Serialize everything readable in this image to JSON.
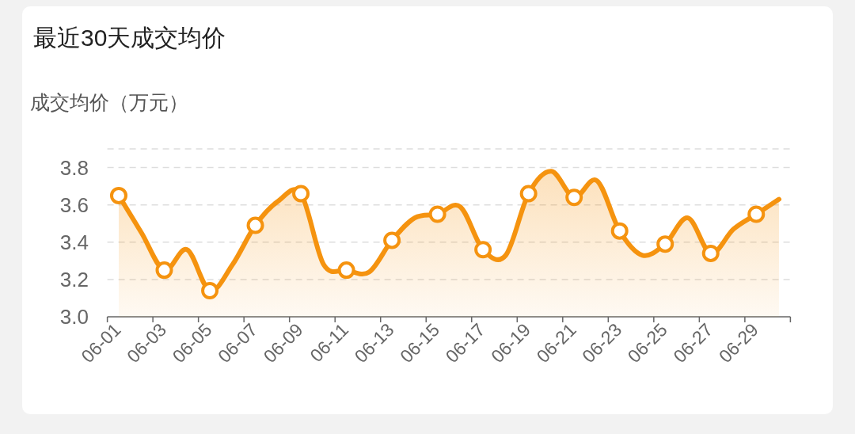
{
  "chart_data": {
    "type": "area",
    "title": "最近30天成交均价",
    "ylabel": "成交均价（万元）",
    "categories": [
      "06-01",
      null,
      "06-03",
      null,
      "06-05",
      null,
      "06-07",
      null,
      "06-09",
      null,
      "06-11",
      null,
      "06-13",
      null,
      "06-15",
      null,
      "06-17",
      null,
      "06-19",
      null,
      "06-21",
      null,
      "06-23",
      null,
      "06-25",
      null,
      "06-27",
      null,
      "06-29",
      null
    ],
    "series": [
      {
        "color": "#f5930f",
        "values": [
          3.65,
          3.45,
          3.25,
          3.36,
          3.14,
          3.28,
          3.49,
          3.62,
          3.66,
          3.28,
          3.25,
          3.24,
          3.41,
          3.53,
          3.55,
          3.59,
          3.36,
          3.33,
          3.66,
          3.78,
          3.64,
          3.73,
          3.46,
          3.33,
          3.39,
          3.53,
          3.34,
          3.47,
          3.55,
          3.63
        ]
      }
    ],
    "ylim": [
      3.0,
      3.9
    ],
    "yticks": [
      {
        "value": 3.0,
        "label": "3.0"
      },
      {
        "value": 3.2,
        "label": "3.2"
      },
      {
        "value": 3.4,
        "label": "3.4"
      },
      {
        "value": 3.6,
        "label": "3.6"
      },
      {
        "value": 3.8,
        "label": "3.8"
      },
      {
        "value": 3.9,
        "label": null
      }
    ],
    "grid": "y",
    "marker": "circle",
    "line_style": "solid"
  }
}
